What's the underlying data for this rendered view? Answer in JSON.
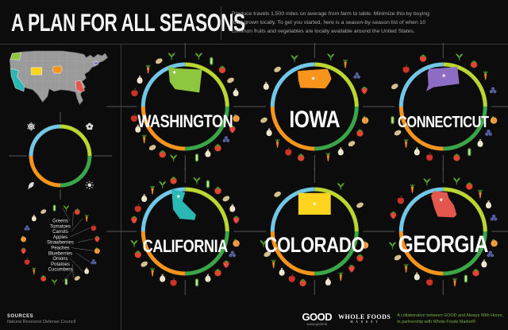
{
  "title": "A PLAN FOR ALL SEASONS",
  "intro": "Produce travels 1,500 miles on average from farm to table. Minimize this by buying food grown locally. To get you started, here is a season-by-season list of when 10 common fruits and vegetables are locally available around the United States.",
  "seasons": [
    {
      "id": "winter",
      "icon": "snowflake-icon",
      "color": "#72c7e7",
      "quadrant": "top-left"
    },
    {
      "id": "spring",
      "icon": "flower-icon",
      "color": "#bcd631",
      "quadrant": "top-right"
    },
    {
      "id": "summer",
      "icon": "sun-icon",
      "color": "#3aa648",
      "quadrant": "bottom-right"
    },
    {
      "id": "fall",
      "icon": "leaf-icon",
      "color": "#f7941e",
      "quadrant": "bottom-left"
    }
  ],
  "produce_key": {
    "items": [
      "Greens",
      "Tomatoes",
      "Carrots",
      "Apples",
      "Strawberries",
      "Peaches",
      "Blueberries",
      "Onions",
      "Potatoes",
      "Cucumbers"
    ]
  },
  "states": [
    {
      "name": "WASHINGTON",
      "shape": "washington",
      "color": "#8dc63f",
      "produce": {
        "winter": [
          "apple",
          "onion",
          "carrot",
          "potato",
          "greens"
        ],
        "spring": [
          "greens",
          "cucumber",
          "tomato",
          "potato",
          "onion"
        ],
        "summer": [
          "peach",
          "strawberry",
          "blueberries",
          "tomato",
          "onion",
          "cucumber"
        ],
        "fall": [
          "greens",
          "tomato",
          "potato",
          "carrot",
          "onion",
          "apple"
        ]
      }
    },
    {
      "name": "IOWA",
      "shape": "iowa",
      "color": "#f7941d",
      "produce": {
        "winter": [
          "onion",
          "potato",
          "greens"
        ],
        "spring": [
          "greens",
          "carrot",
          "blueberries",
          "strawberry"
        ],
        "summer": [
          "peach",
          "tomato",
          "potato",
          "onion",
          "carrot"
        ],
        "fall": [
          "tomato",
          "apple",
          "carrot",
          "onion",
          "potato"
        ]
      }
    },
    {
      "name": "CONNECTICUT",
      "shape": "connecticut",
      "color": "#8d6cc3",
      "produce": {
        "winter": [
          "potato",
          "apple",
          "tomato"
        ],
        "spring": [
          "greens",
          "tomato",
          "carrot",
          "blueberries"
        ],
        "summer": [
          "peach",
          "blueberries",
          "onion",
          "cucumber",
          "tomato"
        ],
        "fall": [
          "apple",
          "onion",
          "carrot",
          "potato",
          "cucumber"
        ]
      }
    },
    {
      "name": "CALIFORNIA",
      "shape": "california",
      "color": "#2bb7b3",
      "produce": {
        "winter": [
          "strawberry",
          "apple",
          "onion",
          "carrot",
          "greens",
          "tomato"
        ],
        "spring": [
          "greens",
          "cucumber",
          "tomato",
          "potato",
          "onion",
          "strawberry"
        ],
        "summer": [
          "peach",
          "blueberries",
          "strawberry",
          "tomato",
          "onion",
          "cucumber"
        ],
        "fall": [
          "apple",
          "onion",
          "carrot",
          "potato",
          "tomato",
          "greens"
        ]
      }
    },
    {
      "name": "COLORADO",
      "shape": "colorado",
      "color": "#ffd41e",
      "produce": {
        "winter": [
          "potato"
        ],
        "spring": [
          "greens",
          "potato"
        ],
        "summer": [
          "peach",
          "tomato",
          "strawberry",
          "carrot",
          "onion"
        ],
        "fall": [
          "tomato",
          "apple",
          "onion",
          "carrot",
          "potato",
          "greens"
        ]
      }
    },
    {
      "name": "GEORGIA",
      "shape": "georgia",
      "color": "#e4574d",
      "produce": {
        "winter": [
          "strawberry",
          "apple",
          "carrot",
          "greens"
        ],
        "spring": [
          "greens",
          "tomato",
          "carrot",
          "onion",
          "blueberries"
        ],
        "summer": [
          "peach",
          "blueberries",
          "onion",
          "tomato",
          "cucumber",
          "carrot"
        ],
        "fall": [
          "apple",
          "onion",
          "carrot",
          "potato",
          "greens"
        ]
      }
    }
  ],
  "source": {
    "label": "SOURCES",
    "text": "Natural Resource Defense Council"
  },
  "footer": {
    "good": "GOOD",
    "good_sub": "www.good.is",
    "wholefoods_line1": "WHOLE FOODS",
    "wholefoods_line2": "M A R K E T",
    "credit_line1": "A collaboration between GOOD and Always With Honor,",
    "credit_line2": "in partnership with Whole Foods Market®"
  }
}
